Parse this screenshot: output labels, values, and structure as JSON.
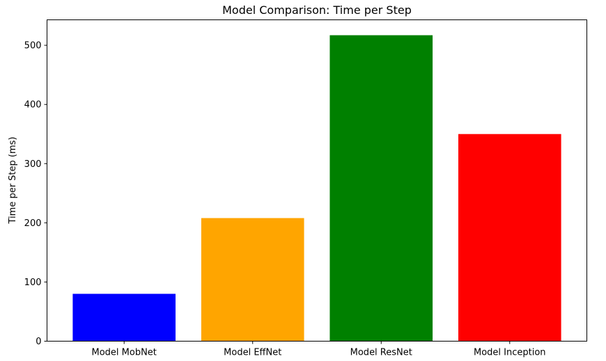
{
  "chart_data": {
    "type": "bar",
    "title": "Model Comparison: Time per Step",
    "xlabel": "",
    "ylabel": "Time per Step (ms)",
    "categories": [
      "Model MobNet",
      "Model EffNet",
      "Model ResNet",
      "Model Inception"
    ],
    "values": [
      80,
      208,
      517,
      350
    ],
    "colors": [
      "#0000ff",
      "#ffa500",
      "#008000",
      "#ff0000"
    ],
    "ylim": [
      0,
      543
    ],
    "yticks": [
      0,
      100,
      200,
      300,
      400,
      500
    ],
    "grid": false,
    "legend": "none"
  }
}
